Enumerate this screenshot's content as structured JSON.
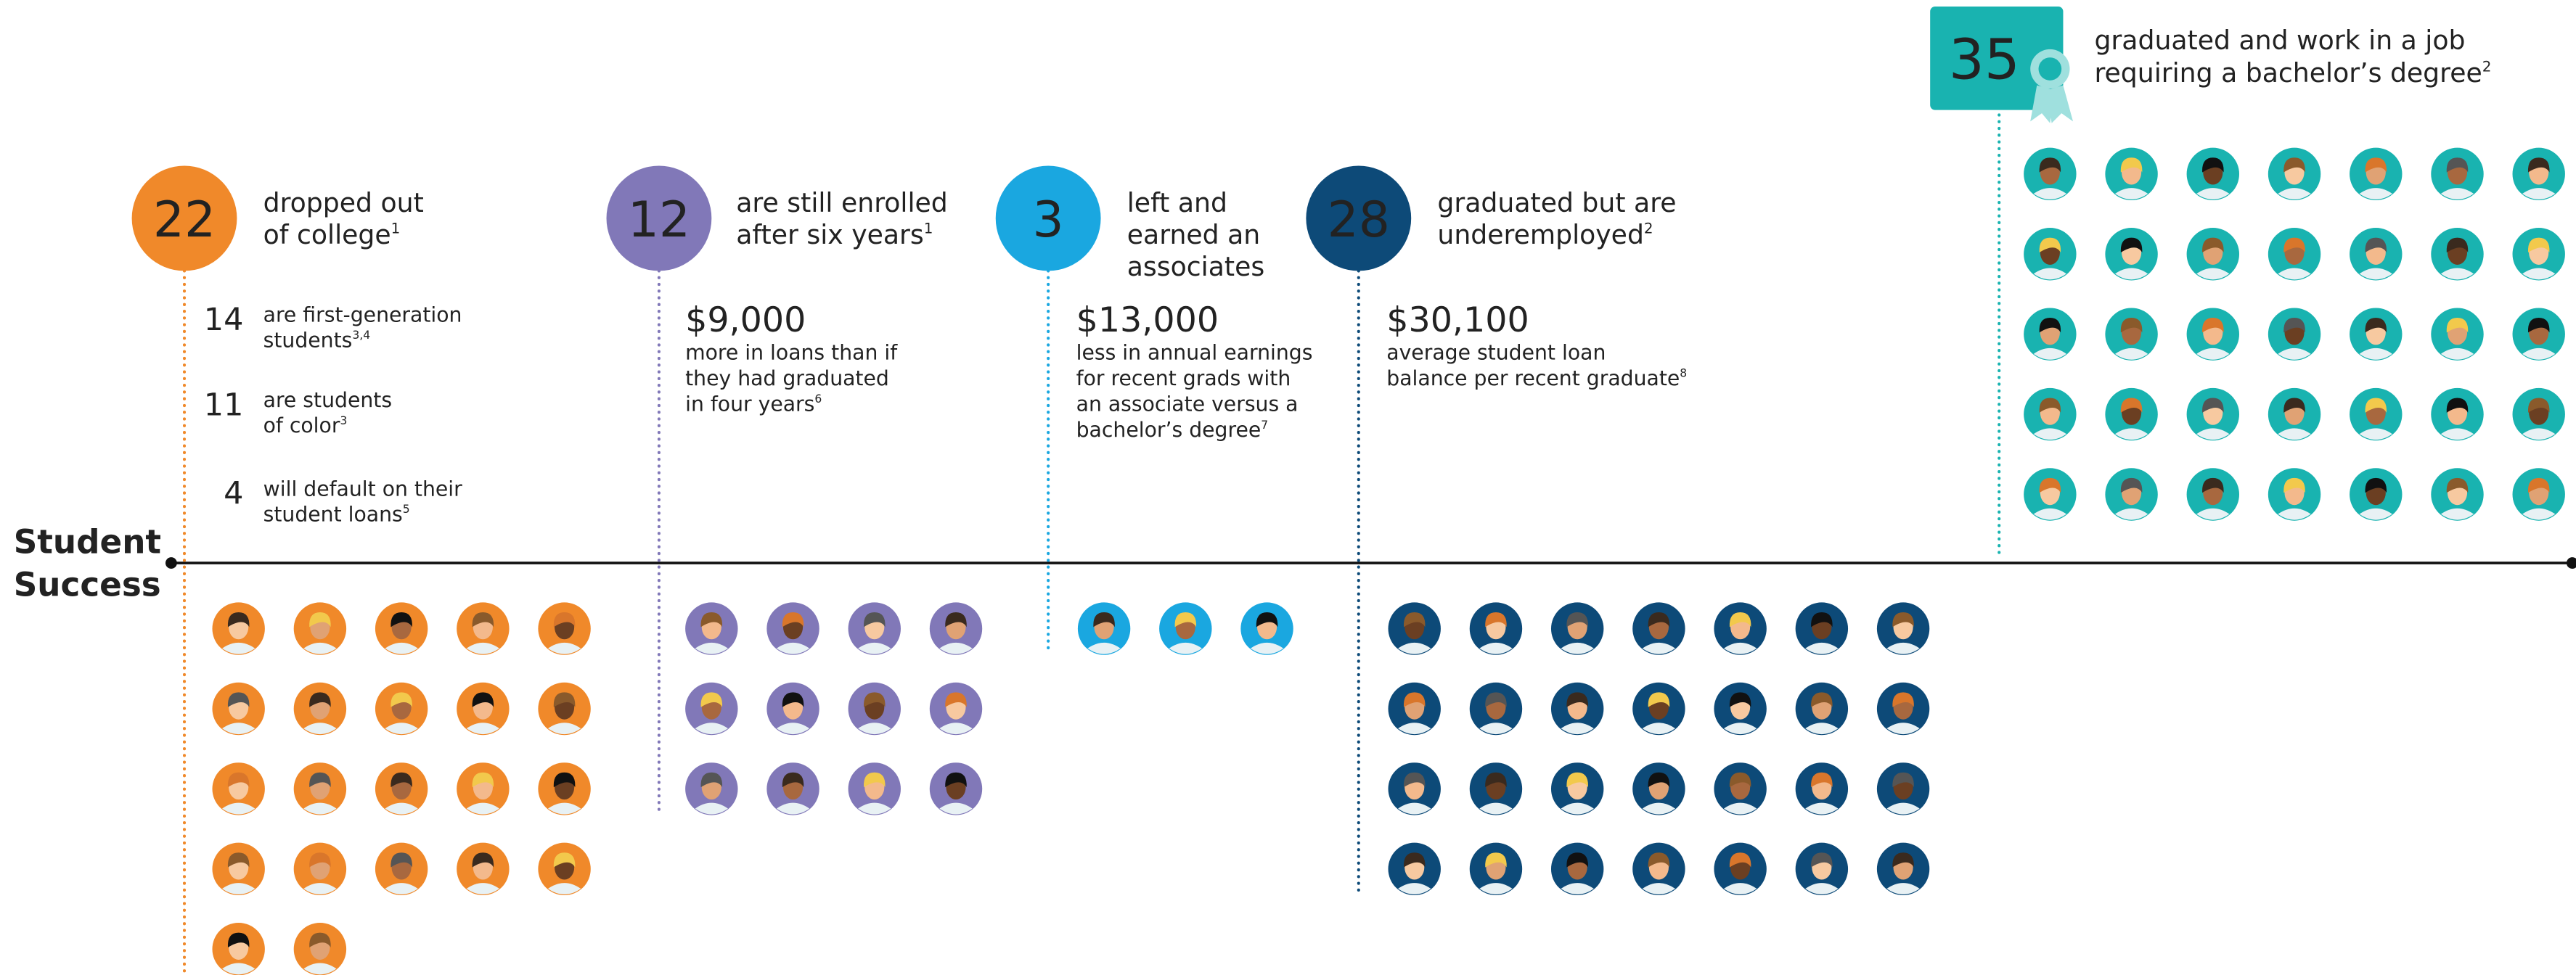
{
  "axis_label_lines": [
    "Student",
    "Success"
  ],
  "groups": [
    {
      "number": 22,
      "color": "#f0892a",
      "title_lines": [
        "dropped out",
        "of college"
      ],
      "title_note": "1",
      "sub_items": [
        {
          "number": 14,
          "lines": [
            "are first-generation",
            "students"
          ],
          "note": "3,4"
        },
        {
          "number": 11,
          "lines": [
            "are students",
            "of color"
          ],
          "note": "3"
        },
        {
          "number": 4,
          "lines": [
            "will default on their",
            "student loans"
          ],
          "note": "5"
        }
      ]
    },
    {
      "number": 12,
      "color": "#8178b8",
      "title_lines": [
        "are still enrolled",
        "after six years"
      ],
      "title_note": "1",
      "stat": "$9,000",
      "stat_lines": [
        "more in loans than if",
        "they had graduated",
        "in four years"
      ],
      "stat_note": "6"
    },
    {
      "number": 3,
      "color": "#1aa7e0",
      "title_lines": [
        "left and",
        "earned an",
        "associates"
      ],
      "stat": "$13,000",
      "stat_lines": [
        "less in annual earnings",
        "for recent grads with",
        "an associate versus a",
        "bachelor’s degree"
      ],
      "stat_note": "7"
    },
    {
      "number": 28,
      "color": "#0d4a78",
      "title_lines": [
        "graduated but are",
        "underemployed"
      ],
      "title_note": "2",
      "stat": "$30,100",
      "stat_lines": [
        "average student loan",
        "balance per recent graduate"
      ],
      "stat_note": "8"
    },
    {
      "number": 35,
      "color": "#19b3b0",
      "title_lines": [
        "graduated and work in a job",
        "requiring a bachelor’s degree"
      ],
      "title_note": "2"
    }
  ]
}
